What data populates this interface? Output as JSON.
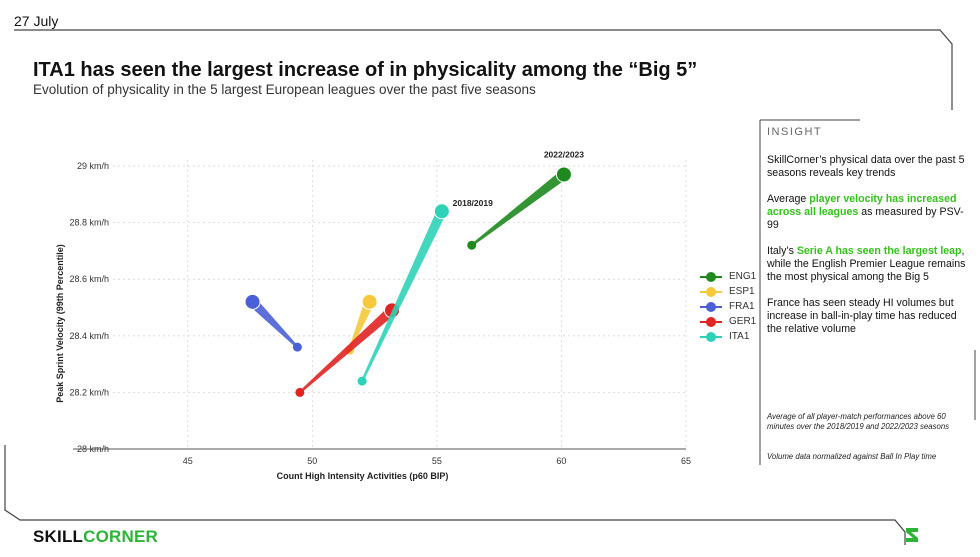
{
  "date": "27 July",
  "title": "ITA1 has seen the largest increase of in physicality among the “Big 5”",
  "subtitle": "Evolution of physicality in the 5 largest European leagues over the past five seasons",
  "chart_data": {
    "type": "scatter",
    "xlabel": "Count High Intensity Activities (p60 BIP)",
    "ylabel": "Peak Sprint Velocity (99th Percentile)",
    "xlim": [
      42,
      65
    ],
    "ylim": [
      28,
      29
    ],
    "xticks": [
      "45",
      "50",
      "55",
      "60",
      "65"
    ],
    "yticks": [
      "28 km/h",
      "28.2 km/h",
      "28.4 km/h",
      "28.6 km/h",
      "28.8 km/h",
      "29 km/h"
    ],
    "xtick_values": [
      45,
      50,
      55,
      60,
      65
    ],
    "ytick_values": [
      28,
      28.2,
      28.4,
      28.6,
      28.8,
      29
    ],
    "grid": true,
    "legend_position": "right",
    "series": [
      {
        "name": "ENG1",
        "color": "#1e8a1e",
        "start": [
          56.4,
          28.72
        ],
        "end": [
          60.1,
          28.97
        ]
      },
      {
        "name": "ESP1",
        "color": "#f5c93a",
        "start": [
          51.5,
          28.35
        ],
        "end": [
          52.3,
          28.52
        ]
      },
      {
        "name": "FRA1",
        "color": "#4b5fd6",
        "start": [
          49.4,
          28.36
        ],
        "end": [
          47.6,
          28.52
        ]
      },
      {
        "name": "GER1",
        "color": "#e02424",
        "start": [
          49.5,
          28.2
        ],
        "end": [
          53.2,
          28.49
        ]
      },
      {
        "name": "ITA1",
        "color": "#2ed3b7",
        "start": [
          52.0,
          28.24
        ],
        "end": [
          55.2,
          28.84
        ]
      }
    ],
    "annotations": [
      {
        "text": "2022/2023",
        "x": 60.1,
        "y": 28.97
      },
      {
        "text": "2018/2019",
        "x": 56.4,
        "y": 28.72
      }
    ]
  },
  "insight": {
    "heading": "INSIGHT",
    "p1": "SkillCorner’s physical data over the past 5 seasons reveals key trends",
    "p2_pre": "Average ",
    "p2_hl": "player velocity has increased across all leagues",
    "p2_post": " as measured by PSV-99",
    "p3_pre": "Italy’s ",
    "p3_hl": "Serie A has seen the largest leap",
    "p3_post": ", while the English Premier League remains the most physical among the Big 5",
    "p4": "France has seen steady HI volumes but increase in ball-in-play time has reduced the relative volume",
    "foot1": "Average of all player-match performances above 60 minutes over the 2018/2019 and 2022/2023 seasons",
    "foot2": "Volume data normalized against Ball In Play time"
  },
  "brand": {
    "part1": "SKILL",
    "part2": "CORNER",
    "accent": "#2cb534"
  }
}
